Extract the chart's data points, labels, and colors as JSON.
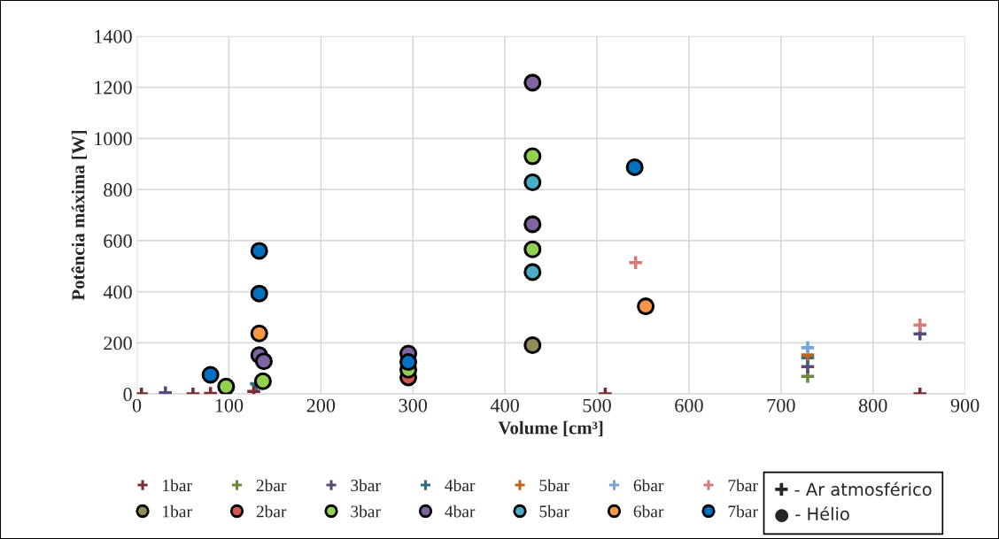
{
  "chart_data": {
    "type": "scatter",
    "xlabel": "Volume [cm³]",
    "ylabel": "Potência máxima [W]",
    "xlim": [
      0,
      900
    ],
    "ylim": [
      0,
      1400
    ],
    "xticks": [
      0,
      100,
      200,
      300,
      400,
      500,
      600,
      700,
      800,
      900
    ],
    "yticks": [
      0,
      200,
      400,
      600,
      800,
      1000,
      1200,
      1400
    ],
    "grid": true,
    "legend": "bottom",
    "annotations": [
      "✚ - Ar atmosférico",
      "● - Hélio"
    ],
    "series": [
      {
        "name": "1bar",
        "color": "#7b2c2c",
        "marker": "cross",
        "x": [
          5,
          61,
          80,
          127,
          509,
          851
        ],
        "values": [
          0,
          0,
          2,
          10,
          0,
          0
        ]
      },
      {
        "name": "2bar",
        "color": "#6b8a3a",
        "marker": "cross",
        "x": [
          729
        ],
        "values": [
          69
        ]
      },
      {
        "name": "3bar",
        "color": "#5a4a7a",
        "marker": "cross",
        "x": [
          31,
          729,
          851
        ],
        "values": [
          5,
          107,
          235
        ]
      },
      {
        "name": "4bar",
        "color": "#2e6f80",
        "marker": "cross",
        "x": [
          130,
          729
        ],
        "values": [
          40,
          142
        ]
      },
      {
        "name": "5bar",
        "color": "#c0621a",
        "marker": "cross",
        "x": [
          729
        ],
        "values": [
          153
        ]
      },
      {
        "name": "6bar",
        "color": "#7aa3d6",
        "marker": "cross",
        "x": [
          729
        ],
        "values": [
          181
        ]
      },
      {
        "name": "7bar",
        "color": "#d97a7a",
        "marker": "cross",
        "x": [
          542,
          851
        ],
        "values": [
          514,
          270
        ]
      },
      {
        "name": "1bar",
        "color": "#938b58",
        "marker": "circle",
        "x": [
          430
        ],
        "values": [
          191
        ]
      },
      {
        "name": "2bar",
        "color": "#d9564a",
        "marker": "circle",
        "x": [
          295
        ],
        "values": [
          65
        ]
      },
      {
        "name": "3bar",
        "color": "#92d050",
        "marker": "circle",
        "x": [
          97,
          137,
          295,
          430,
          430
        ],
        "values": [
          29,
          50,
          95,
          566,
          930
        ]
      },
      {
        "name": "4bar",
        "color": "#8064a2",
        "marker": "circle",
        "x": [
          133,
          138,
          295,
          430,
          430
        ],
        "values": [
          152,
          128,
          158,
          664,
          1218
        ]
      },
      {
        "name": "5bar",
        "color": "#4bacc6",
        "marker": "circle",
        "x": [
          430,
          430
        ],
        "values": [
          477,
          828
        ]
      },
      {
        "name": "6bar",
        "color": "#f79646",
        "marker": "circle",
        "x": [
          133,
          553
        ],
        "values": [
          237,
          343
        ]
      },
      {
        "name": "7bar",
        "color": "#0070c0",
        "marker": "circle",
        "x": [
          80,
          133,
          133,
          295,
          541
        ],
        "values": [
          75,
          393,
          560,
          125,
          887
        ]
      }
    ]
  }
}
